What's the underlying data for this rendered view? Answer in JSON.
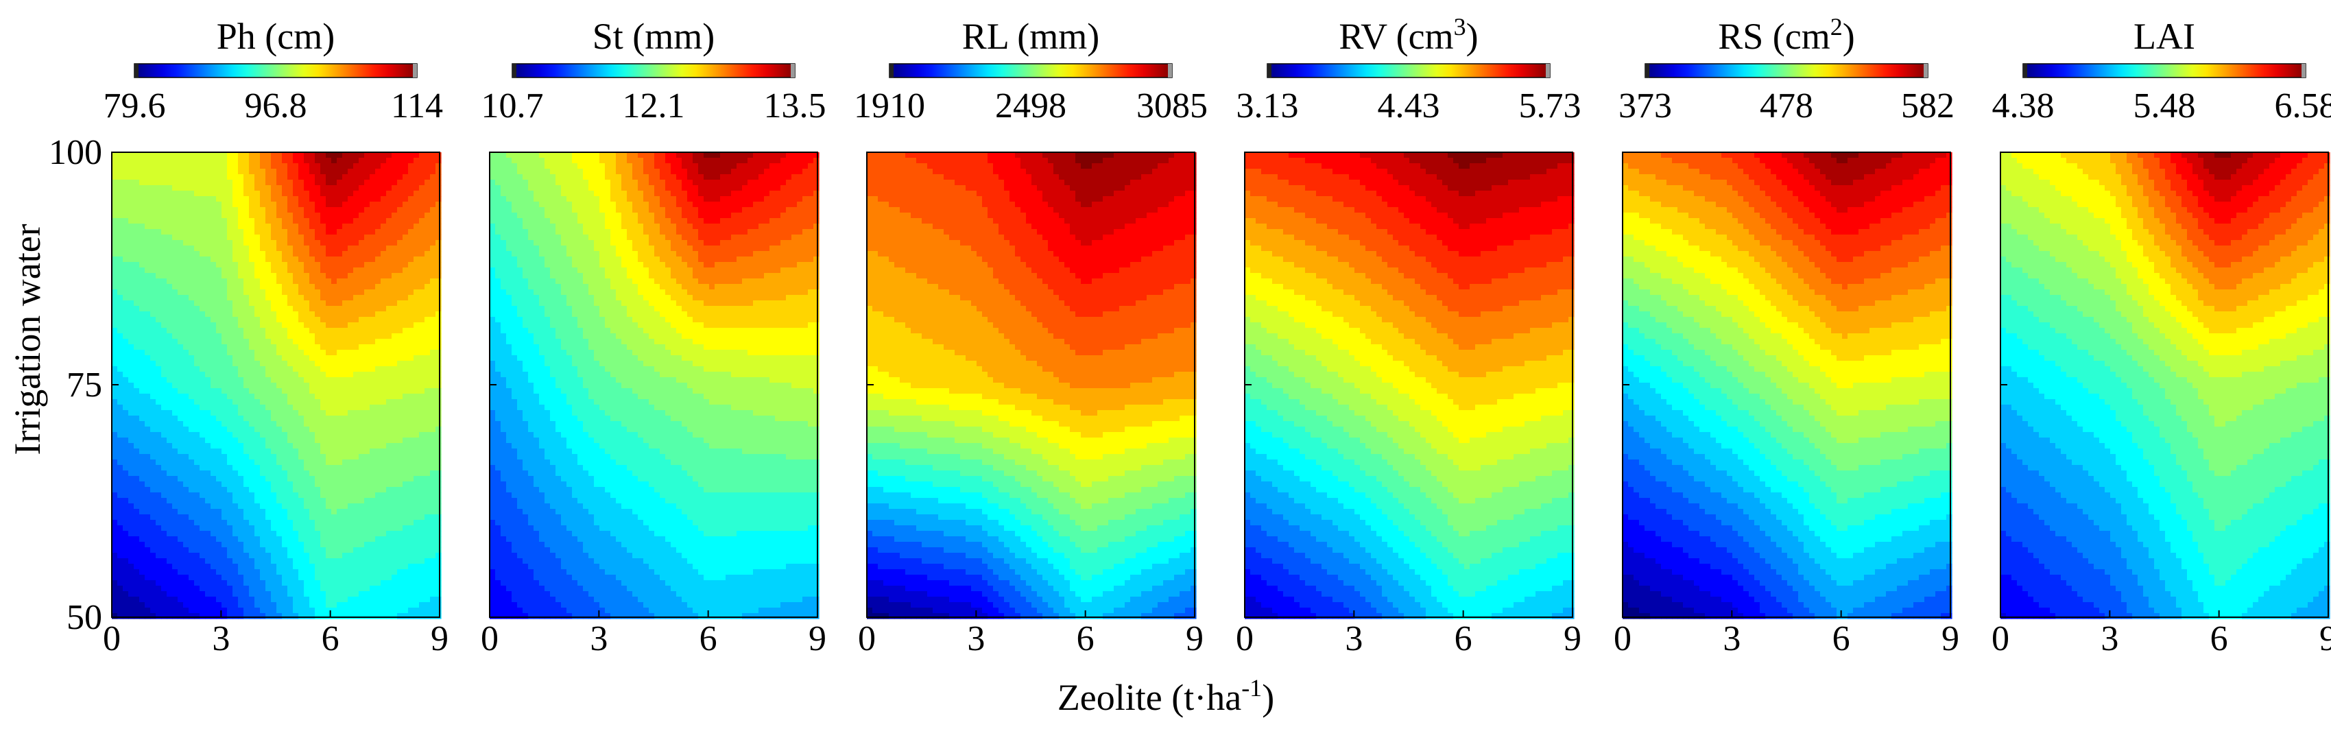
{
  "figure": {
    "y_axis_label": "Irrigation water",
    "x_axis_label": "Zeolite (t·ha",
    "x_axis_label_sup": "-1",
    "x_axis_label_end": ")"
  },
  "chart_data": [
    {
      "type": "heatmap",
      "title": "Ph (cm)",
      "title_base": "Ph (cm)",
      "colorbar_ticks": [
        "79.6",
        "96.8",
        "114"
      ],
      "vmin": 79.6,
      "vmax": 114,
      "x": [
        0,
        3,
        6,
        9
      ],
      "y": [
        50,
        75,
        100
      ],
      "xlabel": "Zeolite (t·ha-1)",
      "ylabel": "Irrigation water",
      "z": [
        [
          80,
          84,
          93,
          91
        ],
        [
          91,
          95,
          100,
          99
        ],
        [
          100,
          100,
          114,
          108
        ]
      ]
    },
    {
      "type": "heatmap",
      "title": "St (mm)",
      "title_base": "St (mm)",
      "colorbar_ticks": [
        "10.7",
        "12.1",
        "13.5"
      ],
      "vmin": 10.7,
      "vmax": 13.5,
      "x": [
        0,
        3,
        6,
        9
      ],
      "y": [
        50,
        75,
        100
      ],
      "xlabel": "Zeolite (t·ha-1)",
      "ylabel": "Irrigation water",
      "z": [
        [
          11.0,
          11.3,
          11.6,
          11.5
        ],
        [
          11.5,
          12.0,
          12.2,
          12.3
        ],
        [
          12.1,
          12.5,
          13.5,
          13.1
        ]
      ]
    },
    {
      "type": "heatmap",
      "title": "RL (mm)",
      "title_base": "RL (mm)",
      "colorbar_ticks": [
        "1910",
        "2498",
        "3085"
      ],
      "vmin": 1910,
      "vmax": 3085,
      "x": [
        0,
        3,
        6,
        9
      ],
      "y": [
        50,
        75,
        100
      ],
      "xlabel": "Zeolite (t·ha-1)",
      "ylabel": "Irrigation water",
      "z": [
        [
          1910,
          2000,
          2300,
          2150
        ],
        [
          2650,
          2700,
          2780,
          2750
        ],
        [
          2850,
          2900,
          3085,
          3000
        ]
      ]
    },
    {
      "type": "heatmap",
      "title": "RV (cm3)",
      "title_base": "RV (cm",
      "title_sup": "3",
      "title_end": ")",
      "colorbar_ticks": [
        "3.13",
        "4.43",
        "5.73"
      ],
      "vmin": 3.13,
      "vmax": 5.73,
      "x": [
        0,
        3,
        6,
        9
      ],
      "y": [
        50,
        75,
        100
      ],
      "xlabel": "Zeolite (t·ha-1)",
      "ylabel": "Irrigation water",
      "z": [
        [
          3.3,
          3.6,
          4.1,
          3.9
        ],
        [
          4.3,
          4.6,
          4.9,
          4.8
        ],
        [
          5.3,
          5.45,
          5.73,
          5.6
        ]
      ]
    },
    {
      "type": "heatmap",
      "title": "RS (cm2)",
      "title_base": "RS (cm",
      "title_sup": "2",
      "title_end": ")",
      "colorbar_ticks": [
        "373",
        "478",
        "582"
      ],
      "vmin": 373,
      "vmax": 582,
      "x": [
        0,
        3,
        6,
        9
      ],
      "y": [
        50,
        75,
        100
      ],
      "xlabel": "Zeolite (t·ha-1)",
      "ylabel": "Irrigation water",
      "z": [
        [
          373,
          390,
          430,
          410
        ],
        [
          440,
          470,
          500,
          495
        ],
        [
          530,
          545,
          582,
          560
        ]
      ]
    },
    {
      "type": "heatmap",
      "title": "LAI",
      "title_base": "LAI",
      "colorbar_ticks": [
        "4.38",
        "5.48",
        "6.58"
      ],
      "vmin": 4.38,
      "vmax": 6.58,
      "x": [
        0,
        3,
        6,
        9
      ],
      "y": [
        50,
        75,
        100
      ],
      "xlabel": "Zeolite (t·ha-1)",
      "ylabel": "Irrigation water",
      "z": [
        [
          4.6,
          4.8,
          5.2,
          5.0
        ],
        [
          5.1,
          5.3,
          5.6,
          5.5
        ],
        [
          5.7,
          5.9,
          6.58,
          6.2
        ]
      ]
    }
  ]
}
